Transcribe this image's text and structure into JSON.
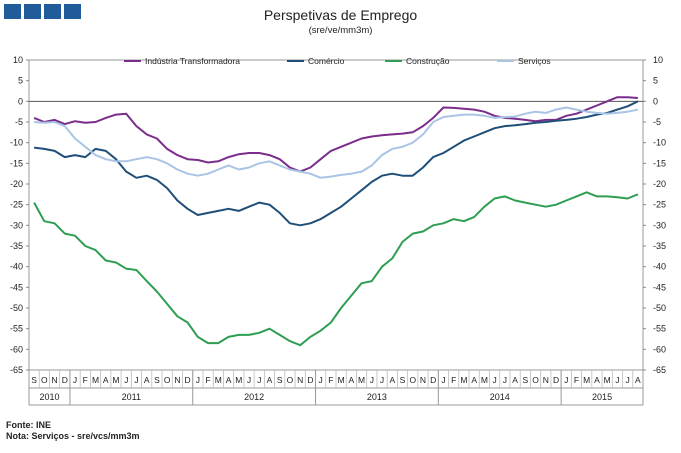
{
  "header": {
    "title": "Perspetivas de Emprego",
    "subtitle": "(sre/ve/mm3m)"
  },
  "footer": {
    "source": "Fonte: INE",
    "note": "Nota: Serviços - sre/vcs/mm3m"
  },
  "chart_data": {
    "type": "line",
    "title": "Perspetivas de Emprego",
    "subtitle": "(sre/ve/mm3m)",
    "ylim": [
      -65,
      10
    ],
    "yticks": [
      10,
      5,
      0,
      -5,
      -10,
      -15,
      -20,
      -25,
      -30,
      -35,
      -40,
      -45,
      -50,
      -55,
      -60,
      -65
    ],
    "grid": false,
    "legend_position": "top",
    "months": [
      "S",
      "O",
      "N",
      "D",
      "J",
      "F",
      "M",
      "A",
      "M",
      "J",
      "J",
      "A",
      "S",
      "O",
      "N",
      "D",
      "J",
      "F",
      "M",
      "A",
      "M",
      "J",
      "J",
      "A",
      "S",
      "O",
      "N",
      "D",
      "J",
      "F",
      "M",
      "A",
      "M",
      "J",
      "J",
      "A",
      "S",
      "O",
      "N",
      "D",
      "J",
      "F",
      "M",
      "A",
      "M",
      "J",
      "J",
      "A",
      "S",
      "O",
      "N",
      "D",
      "J",
      "F",
      "M",
      "A",
      "M",
      "J",
      "J",
      "A"
    ],
    "years": [
      {
        "label": "2010",
        "start": 0,
        "end": 4
      },
      {
        "label": "2011",
        "start": 4,
        "end": 16
      },
      {
        "label": "2012",
        "start": 16,
        "end": 28
      },
      {
        "label": "2013",
        "start": 28,
        "end": 40
      },
      {
        "label": "2014",
        "start": 40,
        "end": 52
      },
      {
        "label": "2015",
        "start": 52,
        "end": 60
      }
    ],
    "series": [
      {
        "name": "Indústria Transformadora",
        "color": "#7b2d8b",
        "values": [
          -4,
          -5,
          -4.5,
          -5.5,
          -4.8,
          -5.2,
          -5,
          -4,
          -3.2,
          -3,
          -6,
          -8,
          -9,
          -11.5,
          -13,
          -14,
          -14.2,
          -14.8,
          -14.5,
          -13.5,
          -12.8,
          -12.5,
          -12.5,
          -13,
          -14,
          -16,
          -17,
          -16,
          -14,
          -12,
          -11,
          -10,
          -9,
          -8.5,
          -8.2,
          -8,
          -7.8,
          -7.5,
          -6,
          -4,
          -1.5,
          -1.6,
          -1.8,
          -2,
          -2.5,
          -3.5,
          -4,
          -4.2,
          -4.5,
          -4.8,
          -4.5,
          -4.5,
          -3.5,
          -3,
          -2,
          -1,
          0,
          1,
          1,
          0.8
        ]
      },
      {
        "name": "Comércio",
        "color": "#1f4e79",
        "values": [
          -11.2,
          -11.5,
          -12,
          -13.5,
          -13,
          -13.5,
          -11.5,
          -12,
          -14,
          -17,
          -18.5,
          -18,
          -19,
          -21,
          -24,
          -26,
          -27.5,
          -27,
          -26.5,
          -26,
          -26.5,
          -25.5,
          -24.5,
          -25,
          -27,
          -29.5,
          -30,
          -29.5,
          -28.5,
          -27,
          -25.5,
          -23.5,
          -21.5,
          -19.5,
          -18,
          -17.5,
          -18,
          -18,
          -16,
          -13.5,
          -12.5,
          -11,
          -9.5,
          -8.5,
          -7.5,
          -6.5,
          -6,
          -5.8,
          -5.5,
          -5.2,
          -5,
          -4.7,
          -4.5,
          -4.2,
          -3.8,
          -3.2,
          -2.8,
          -2,
          -1.2,
          0
        ]
      },
      {
        "name": "Construção",
        "color": "#2e9e52",
        "values": [
          -24.5,
          -29,
          -29.5,
          -32,
          -32.5,
          -35,
          -36,
          -38.5,
          -39,
          -40.5,
          -40.8,
          -43.5,
          -46,
          -49,
          -52,
          -53.5,
          -57,
          -58.5,
          -58.5,
          -57,
          -56.5,
          -56.5,
          -56,
          -55,
          -56.5,
          -58,
          -59,
          -57,
          -55.5,
          -53.5,
          -50,
          -47,
          -44,
          -43.5,
          -40,
          -38,
          -34,
          -32,
          -31.5,
          -30,
          -29.5,
          -28.5,
          -29,
          -28,
          -25.5,
          -23.5,
          -23,
          -24,
          -24.5,
          -25,
          -25.5,
          -25,
          -24,
          -23,
          -22,
          -23,
          -23,
          -23.2,
          -23.5,
          -22.5
        ]
      },
      {
        "name": "Serviços",
        "color": "#a9c4e4",
        "values": [
          -5,
          -5.2,
          -5,
          -6,
          -9,
          -11,
          -13,
          -14,
          -14.5,
          -14.5,
          -14,
          -13.5,
          -14,
          -15,
          -16.5,
          -17.5,
          -18,
          -17.5,
          -16.5,
          -15.5,
          -16.5,
          -16,
          -15,
          -14.5,
          -15.5,
          -16.5,
          -17,
          -17.5,
          -18.5,
          -18.2,
          -17.8,
          -17.5,
          -17,
          -15.5,
          -13,
          -11.5,
          -11,
          -10,
          -8,
          -5,
          -3.8,
          -3.5,
          -3.2,
          -3.2,
          -3.5,
          -4,
          -3.8,
          -3.7,
          -3,
          -2.5,
          -2.8,
          -2,
          -1.5,
          -2,
          -2.5,
          -2.8,
          -3,
          -2.8,
          -2.5,
          -2
        ]
      }
    ]
  }
}
